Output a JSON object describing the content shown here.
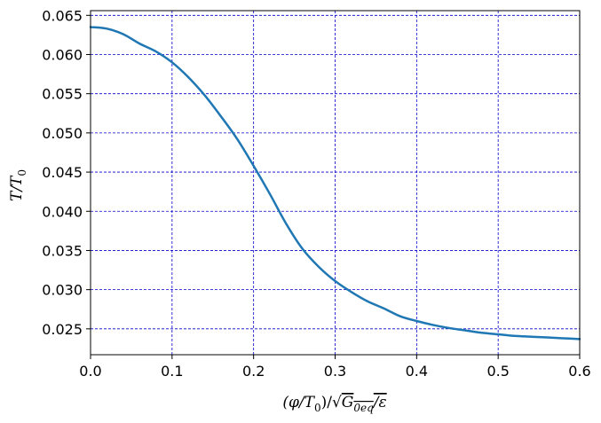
{
  "chart_data": {
    "type": "line",
    "title": "",
    "xlabel": "(φ/T0)/√(G0eq/ε)",
    "ylabel": "T/T0",
    "xlim": [
      0.0,
      0.6
    ],
    "ylim": [
      0.0217,
      0.0656
    ],
    "xticks": [
      0.0,
      0.1,
      0.2,
      0.3,
      0.4,
      0.5,
      0.6
    ],
    "xtick_labels": [
      "0.0",
      "0.1",
      "0.2",
      "0.3",
      "0.4",
      "0.5",
      "0.6"
    ],
    "yticks": [
      0.025,
      0.03,
      0.035,
      0.04,
      0.045,
      0.05,
      0.055,
      0.06,
      0.065
    ],
    "ytick_labels": [
      "0.025",
      "0.030",
      "0.035",
      "0.040",
      "0.045",
      "0.050",
      "0.055",
      "0.060",
      "0.065"
    ],
    "grid": true,
    "grid_color": "#0000cc",
    "series": [
      {
        "color": "#1f77b4",
        "x": [
          0.0,
          0.02,
          0.04,
          0.06,
          0.08,
          0.1,
          0.12,
          0.14,
          0.16,
          0.18,
          0.2,
          0.22,
          0.24,
          0.26,
          0.28,
          0.3,
          0.32,
          0.34,
          0.36,
          0.38,
          0.4,
          0.42,
          0.44,
          0.46,
          0.48,
          0.5,
          0.52,
          0.54,
          0.56,
          0.58,
          0.6
        ],
        "y": [
          0.0635,
          0.0633,
          0.0626,
          0.0614,
          0.0604,
          0.059,
          0.0571,
          0.0548,
          0.0521,
          0.0492,
          0.0458,
          0.0422,
          0.0384,
          0.0352,
          0.0329,
          0.0311,
          0.0297,
          0.0285,
          0.0276,
          0.0266,
          0.026,
          0.0255,
          0.0251,
          0.0248,
          0.0245,
          0.0243,
          0.0241,
          0.024,
          0.0239,
          0.0238,
          0.0237
        ]
      }
    ]
  }
}
